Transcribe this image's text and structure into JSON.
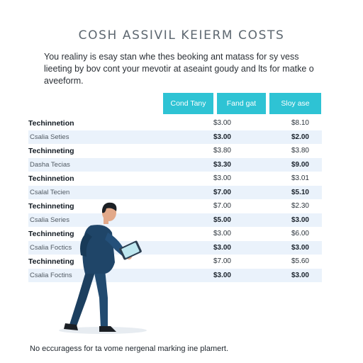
{
  "title": "COSH ASSIVIL KEIERM COSTS",
  "intro": "You realiny is esay stan whe thes beoking ant matass for sy vess lieeting by bov cont your mevotir at aseaint goudy and lts for matke o aveeform.",
  "columns": [
    "Cond Tany",
    "Fand gat",
    "Sloy ase"
  ],
  "rows": [
    {
      "label": "Techinnetion",
      "v1": "$3.00",
      "v2": "$8.10",
      "type": "main"
    },
    {
      "label": "Csalia Seties",
      "v1": "$3.00",
      "v2": "$2.00",
      "type": "sub"
    },
    {
      "label": "Techinneting",
      "v1": "$3.80",
      "v2": "$3.80",
      "type": "main"
    },
    {
      "label": "Dasha Tecias",
      "v1": "$3.30",
      "v2": "$9.00",
      "type": "sub"
    },
    {
      "label": "Techinnetion",
      "v1": "$3.00",
      "v2": "$3.01",
      "type": "main"
    },
    {
      "label": "Csalal Tecien",
      "v1": "$7.00",
      "v2": "$5.10",
      "type": "sub"
    },
    {
      "label": "Techinneting",
      "v1": "$7.00",
      "v2": "$2.30",
      "type": "main"
    },
    {
      "label": "Csalia Series",
      "v1": "$5.00",
      "v2": "$3.00",
      "type": "sub"
    },
    {
      "label": "Techinneting",
      "v1": "$3.00",
      "v2": "$6.00",
      "type": "main"
    },
    {
      "label": "Csalia Foctics",
      "v1": "$3.00",
      "v2": "$3.00",
      "type": "sub"
    },
    {
      "label": "Techinneting",
      "v1": "$7.00",
      "v2": "$5.60",
      "type": "main"
    },
    {
      "label": "Csalia Foctins",
      "v1": "$3.00",
      "v2": "$3.00",
      "type": "sub"
    }
  ],
  "footer": "No eccuragess for ta vome nergenal marking ine plamert.",
  "colors": {
    "accent": "#2ec3d4",
    "row_alt": "#eaf2fb",
    "suit": "#1f4568"
  },
  "illustration": "businessman-with-tablet"
}
